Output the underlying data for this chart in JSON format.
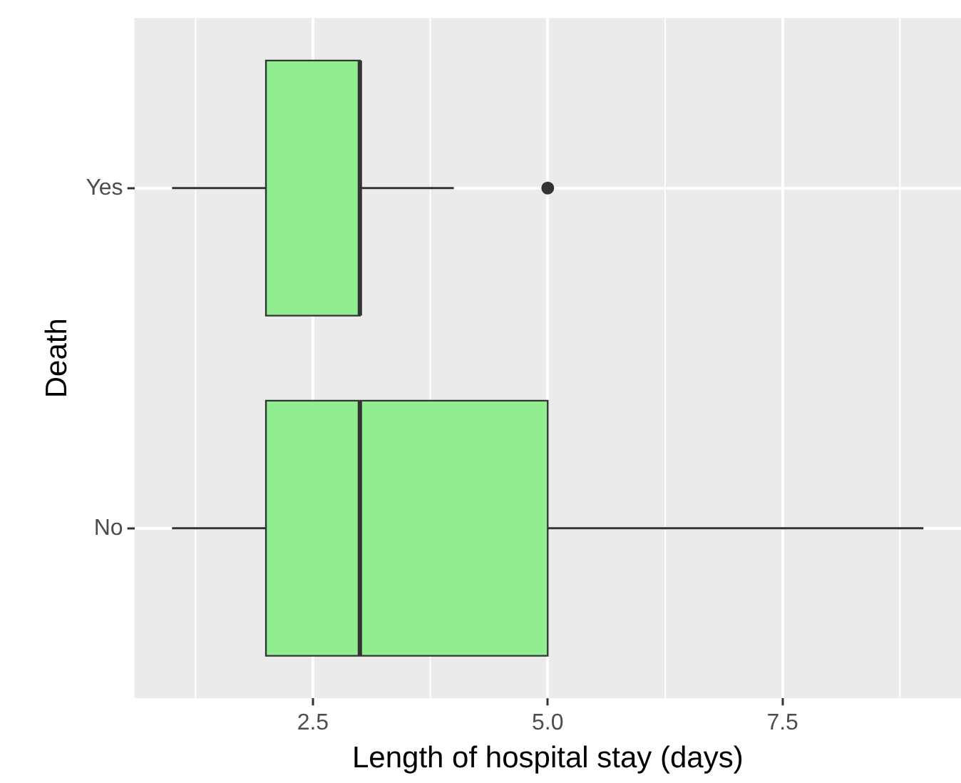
{
  "chart_data": {
    "type": "box",
    "orientation": "horizontal",
    "xlabel": "Length of hospital stay (days)",
    "ylabel": "Death",
    "categories": [
      "Yes",
      "No"
    ],
    "color": "#90ee90",
    "boxes": [
      {
        "low": 1,
        "q1": 2,
        "median": 3,
        "q3": 3,
        "high": 4,
        "outliers": [
          5
        ]
      },
      {
        "low": 1,
        "q1": 2,
        "median": 3,
        "q3": 5,
        "high": 9
      }
    ],
    "xlim": [
      0.6,
      9.4
    ],
    "xticks": [
      {
        "value": 2.5,
        "label": "2.5"
      },
      {
        "value": 5,
        "label": "5.0"
      },
      {
        "value": 7.5,
        "label": "7.5"
      }
    ],
    "grid": true
  }
}
